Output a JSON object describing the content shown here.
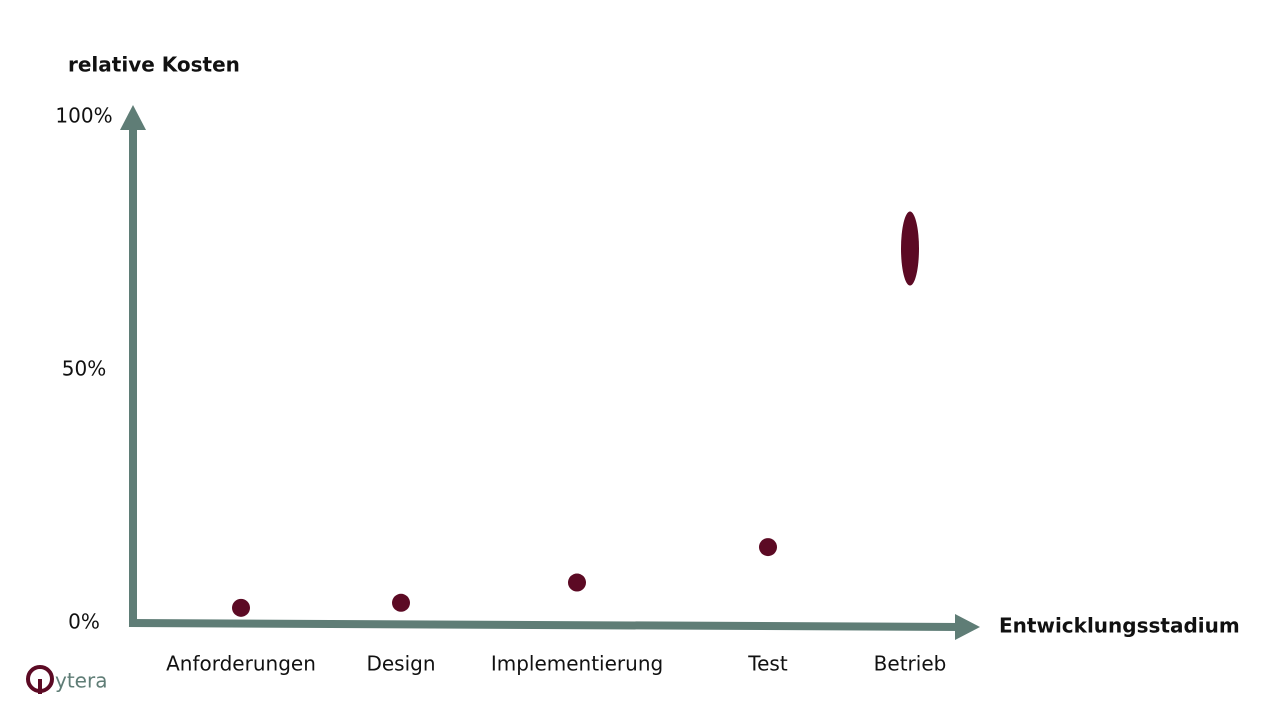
{
  "chart_data": {
    "type": "scatter",
    "y_label": "relative Kosten",
    "x_label": "Entwicklungsstadium",
    "categories": [
      "Anforderungen",
      "Design",
      "Implementierung",
      "Test",
      "Betrieb"
    ],
    "values": [
      3,
      4,
      8,
      15,
      74
    ],
    "color": "#5c0a24",
    "axis_color": "#5f7d76",
    "ylim": [
      0,
      100
    ],
    "yticks": [
      {
        "value": 0,
        "label": "0%"
      },
      {
        "value": 50,
        "label": "50%"
      },
      {
        "value": 100,
        "label": "100%"
      }
    ],
    "grid": false
  },
  "logo": "ytera"
}
